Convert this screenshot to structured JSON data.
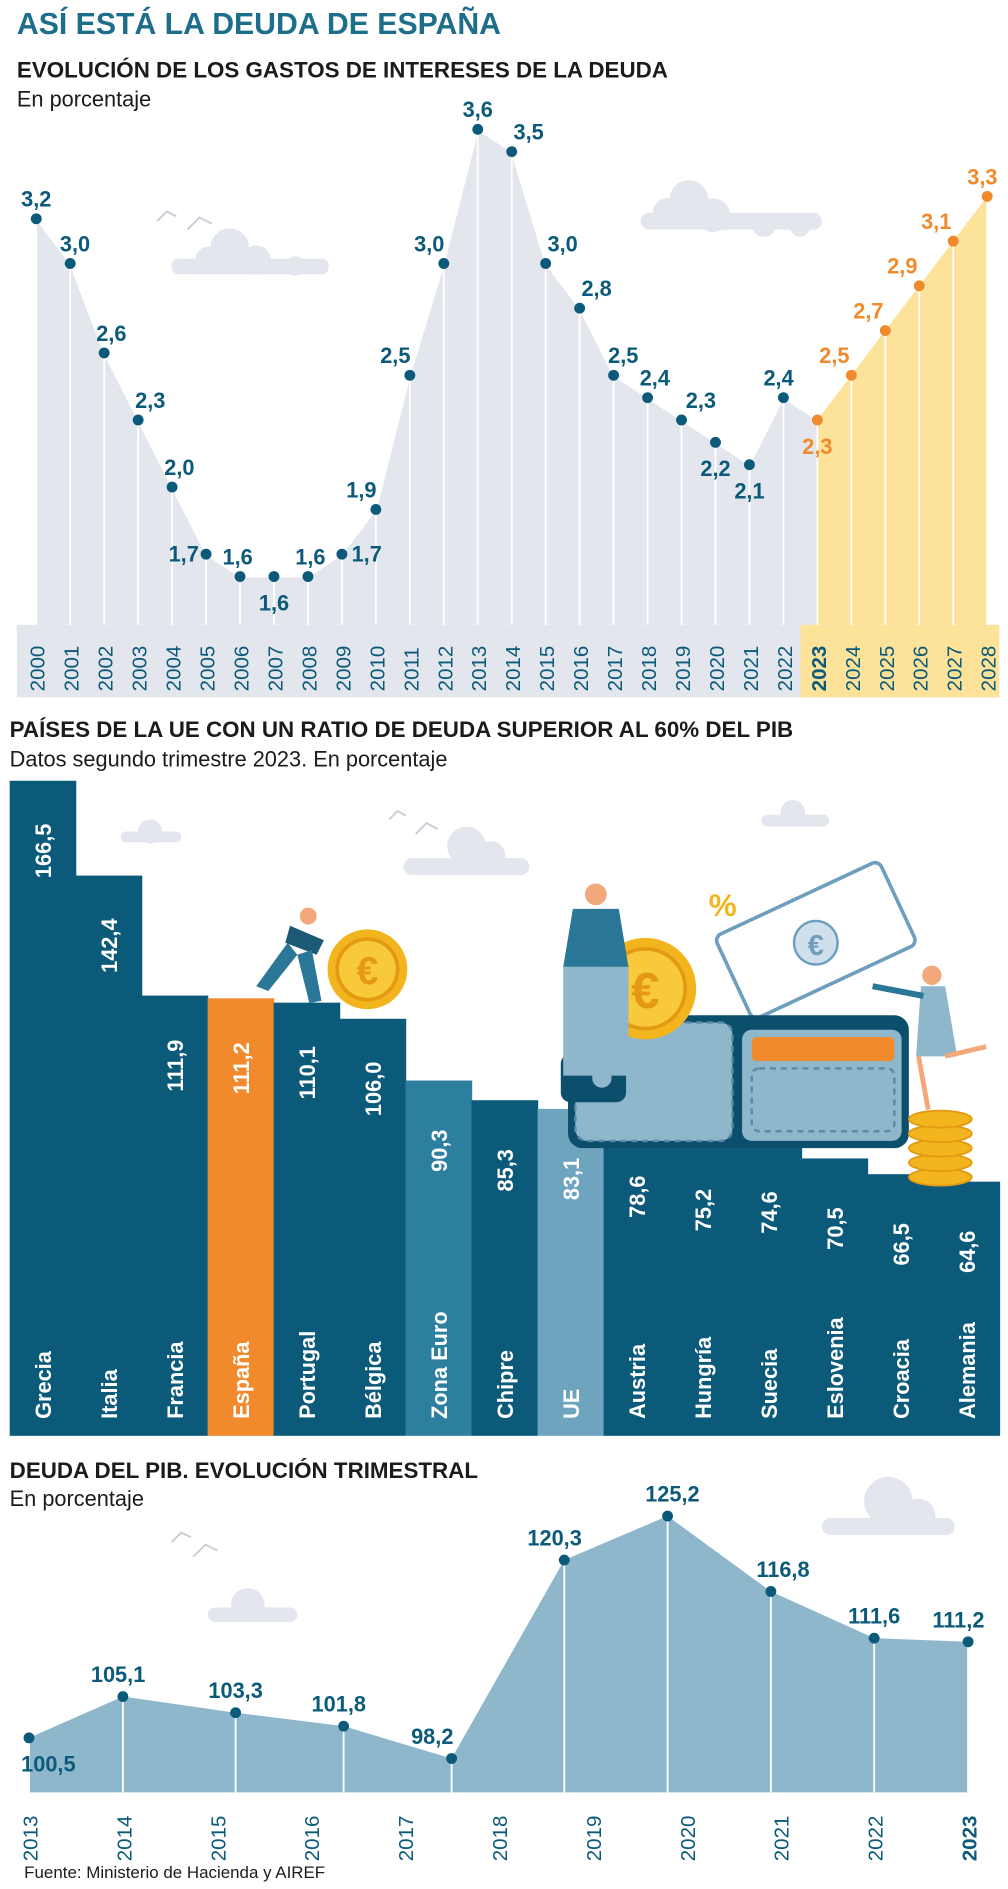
{
  "main_title": "ASÍ ESTÁ LA DEUDA DE ESPAÑA",
  "section1": {
    "title": "EVOLUCIÓN DE LOS GASTOS DE INTERESES DE LA DEUDA",
    "subtitle": "En porcentaje"
  },
  "section2": {
    "title": "PAÍSES DE LA UE CON UN RATIO DE DEUDA SUPERIOR AL 60% DEL PIB",
    "subtitle": "Datos segundo trimestre 2023. En porcentaje"
  },
  "section3": {
    "title": "DEUDA DEL PIB. EVOLUCIÓN TRIMESTRAL",
    "subtitle": "En porcentaje"
  },
  "source": "Fuente: Ministerio de Hacienda y AIREF",
  "colors": {
    "title_blue": "#1d6e8a",
    "dark_blue": "#0b5a7a",
    "forecast_orange": "#f08a2c",
    "forecast_fill": "#fde29a",
    "gray_fill": "#e4e6ee",
    "spain_orange": "#f08a2c",
    "zona_euro": "#2c7f9f",
    "ue": "#6fa4be",
    "area_blue": "#8eb7cc"
  },
  "chart_data": [
    {
      "type": "area",
      "title": "EVOLUCIÓN DE LOS GASTOS DE INTERESES DE LA DEUDA",
      "ylabel": "En porcentaje",
      "x": [
        "2000",
        "2001",
        "2002",
        "2003",
        "2004",
        "2005",
        "2006",
        "2007",
        "2008",
        "2009",
        "2010",
        "2011",
        "2012",
        "2013",
        "2014",
        "2015",
        "2016",
        "2017",
        "2018",
        "2019",
        "2020",
        "2021",
        "2022",
        "2023",
        "2024",
        "2025",
        "2026",
        "2027",
        "2028"
      ],
      "values": [
        3.2,
        3.0,
        2.6,
        2.3,
        2.0,
        1.7,
        1.6,
        1.6,
        1.6,
        1.7,
        1.9,
        2.5,
        3.0,
        3.6,
        3.5,
        3.0,
        2.8,
        2.5,
        2.4,
        2.3,
        2.2,
        2.1,
        2.4,
        2.3,
        2.5,
        2.7,
        2.9,
        3.1,
        3.3
      ],
      "labels": [
        "3,2",
        "3,0",
        "2,6",
        "2,3",
        "2,0",
        "1,7",
        "1,6",
        "1,6",
        "1,6",
        "1,7",
        "1,9",
        "2,5",
        "3,0",
        "3,6",
        "3,5",
        "3,0",
        "2,8",
        "2,5",
        "2,4",
        "2,3",
        "2,2",
        "2,1",
        "2,4",
        "2,3",
        "2,5",
        "2,7",
        "2,9",
        "3,1",
        "3,3"
      ],
      "forecast_from": "2023",
      "highlight_x": "2023",
      "ylim": [
        0,
        3.6
      ]
    },
    {
      "type": "bar",
      "title": "PAÍSES DE LA UE CON UN RATIO DE DEUDA SUPERIOR AL 60% DEL PIB",
      "ylabel": "Datos segundo trimestre 2023. En porcentaje",
      "categories": [
        "Grecia",
        "Italia",
        "Francia",
        "España",
        "Portugal",
        "Bélgica",
        "Zona Euro",
        "Chipre",
        "UE",
        "Austria",
        "Hungría",
        "Suecia",
        "Eslovenia",
        "Croacia",
        "Alemania"
      ],
      "values": [
        166.5,
        142.4,
        111.9,
        111.2,
        110.1,
        106.0,
        90.3,
        85.3,
        83.1,
        78.6,
        75.2,
        74.6,
        70.5,
        66.5,
        64.6
      ],
      "labels": [
        "166,5",
        "142,4",
        "111,9",
        "111,2",
        "110,1",
        "106,0",
        "90,3",
        "85,3",
        "83,1",
        "78,6",
        "75,2",
        "74,6",
        "70,5",
        "66,5",
        "64,6"
      ],
      "highlight": "España",
      "ylim": [
        0,
        166.5
      ]
    },
    {
      "type": "area",
      "title": "DEUDA DEL PIB. EVOLUCIÓN TRIMESTRAL",
      "ylabel": "En porcentaje",
      "x": [
        "2013",
        "2014",
        "2015",
        "2016",
        "2017",
        "2018",
        "2019",
        "2020",
        "2021",
        "2022",
        "2023"
      ],
      "highlight_x": "2023",
      "points": [
        {
          "x": 2013.0,
          "value": 100.5,
          "label": "100,5"
        },
        {
          "x": 2014.0,
          "value": 105.1,
          "label": "105,1"
        },
        {
          "x": 2015.2,
          "value": 103.3,
          "label": "103,3"
        },
        {
          "x": 2016.35,
          "value": 101.8,
          "label": "101,8"
        },
        {
          "x": 2017.5,
          "value": 98.2,
          "label": "98,2"
        },
        {
          "x": 2018.7,
          "value": 120.3,
          "label": "120,3"
        },
        {
          "x": 2019.8,
          "value": 125.2,
          "label": "125,2"
        },
        {
          "x": 2020.9,
          "value": 116.8,
          "label": "116,8"
        },
        {
          "x": 2022.0,
          "value": 111.6,
          "label": "111,6"
        },
        {
          "x": 2023.0,
          "value": 111.2,
          "label": "111,2"
        }
      ],
      "ylim": [
        96,
        125.2
      ]
    }
  ]
}
